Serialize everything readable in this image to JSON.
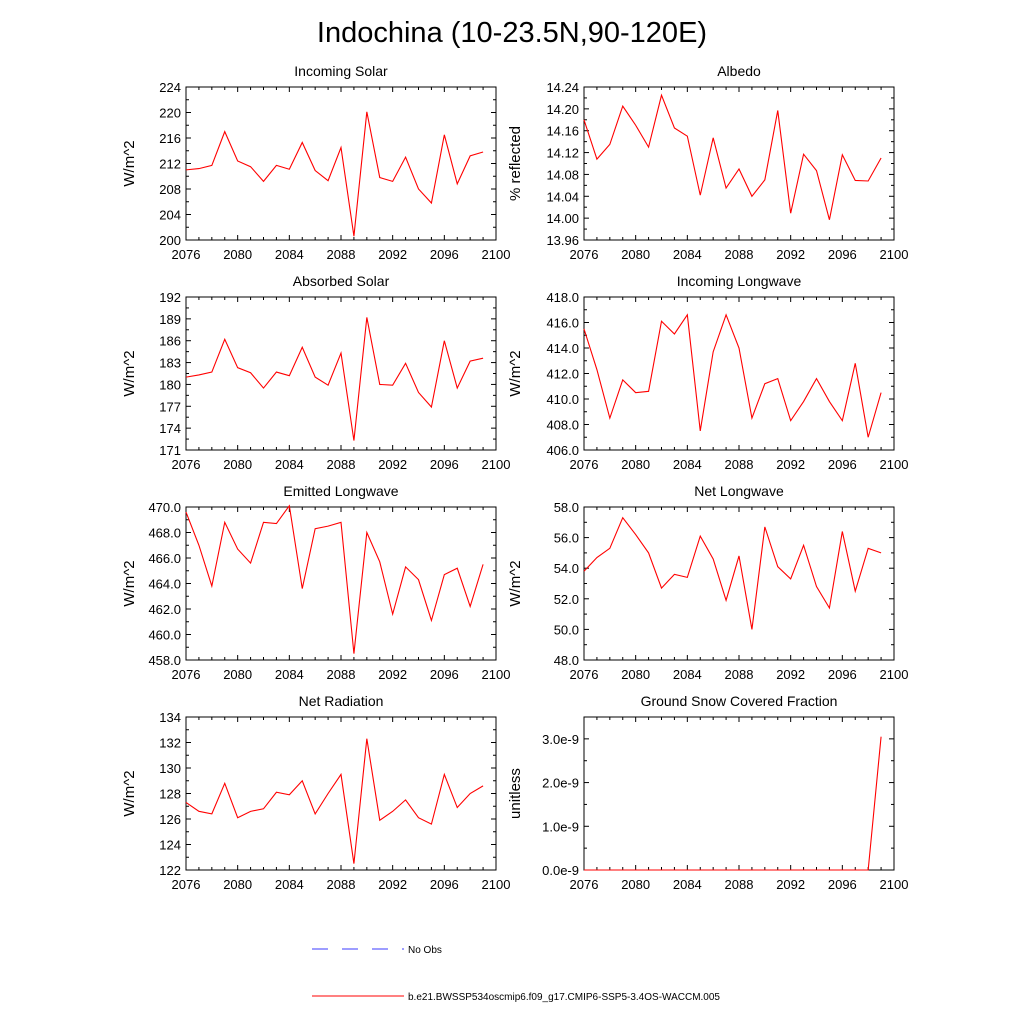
{
  "page_title": "Indochina (10-23.5N,90-120E)",
  "colors": {
    "series": "#ff0000",
    "obs": "#3b3bff",
    "axis": "#000000"
  },
  "legend": {
    "obs_label": "No Obs",
    "series_label": "b.e21.BWSSP534oscmip6.f09_g17.CMIP6-SSP5-3.4OS-WACCM.005"
  },
  "chart_data": [
    {
      "type": "line",
      "title": "Incoming Solar",
      "ylabel": "W/m^2",
      "xlim": [
        2076,
        2100
      ],
      "ylim": [
        200,
        224
      ],
      "xticks": [
        2076,
        2080,
        2084,
        2088,
        2092,
        2096,
        2100
      ],
      "xtick_labels": [
        "2076",
        "2080",
        "2084",
        "2088",
        "2092",
        "2096",
        "2100"
      ],
      "yticks": [
        200,
        204,
        208,
        212,
        216,
        220,
        224
      ],
      "ytick_labels": [
        "200",
        "204",
        "208",
        "212",
        "216",
        "220",
        "224"
      ],
      "x": [
        2076,
        2077,
        2078,
        2079,
        2080,
        2081,
        2082,
        2083,
        2084,
        2085,
        2086,
        2087,
        2088,
        2089,
        2090,
        2091,
        2092,
        2093,
        2094,
        2095,
        2096,
        2097,
        2098,
        2099
      ],
      "values": [
        211.0,
        211.2,
        211.7,
        217.0,
        212.4,
        211.5,
        209.2,
        211.7,
        211.1,
        215.3,
        210.9,
        209.3,
        214.5,
        200.6,
        220.1,
        209.8,
        209.2,
        213.0,
        208.0,
        205.8,
        216.5,
        208.8,
        213.2,
        213.8
      ]
    },
    {
      "type": "line",
      "title": "Albedo",
      "ylabel": "% reflected",
      "xlim": [
        2076,
        2100
      ],
      "ylim": [
        13.96,
        14.24
      ],
      "xticks": [
        2076,
        2080,
        2084,
        2088,
        2092,
        2096,
        2100
      ],
      "xtick_labels": [
        "2076",
        "2080",
        "2084",
        "2088",
        "2092",
        "2096",
        "2100"
      ],
      "yticks": [
        13.96,
        14.0,
        14.04,
        14.08,
        14.12,
        14.16,
        14.2,
        14.24
      ],
      "ytick_labels": [
        "13.96",
        "14.00",
        "14.04",
        "14.08",
        "14.12",
        "14.16",
        "14.20",
        "14.24"
      ],
      "x": [
        2076,
        2077,
        2078,
        2079,
        2080,
        2081,
        2082,
        2083,
        2084,
        2085,
        2086,
        2087,
        2088,
        2089,
        2090,
        2091,
        2092,
        2093,
        2094,
        2095,
        2096,
        2097,
        2098,
        2099
      ],
      "values": [
        14.18,
        14.108,
        14.135,
        14.205,
        14.17,
        14.13,
        14.225,
        14.165,
        14.15,
        14.042,
        14.147,
        14.055,
        14.09,
        14.04,
        14.07,
        14.197,
        14.009,
        14.117,
        14.087,
        13.997,
        14.116,
        14.069,
        14.068,
        14.11
      ]
    },
    {
      "type": "line",
      "title": "Absorbed Solar",
      "ylabel": "W/m^2",
      "xlim": [
        2076,
        2100
      ],
      "ylim": [
        171,
        192
      ],
      "xticks": [
        2076,
        2080,
        2084,
        2088,
        2092,
        2096,
        2100
      ],
      "xtick_labels": [
        "2076",
        "2080",
        "2084",
        "2088",
        "2092",
        "2096",
        "2100"
      ],
      "yticks": [
        171,
        174,
        177,
        180,
        183,
        186,
        189,
        192
      ],
      "ytick_labels": [
        "171",
        "174",
        "177",
        "180",
        "183",
        "186",
        "189",
        "192"
      ],
      "x": [
        2076,
        2077,
        2078,
        2079,
        2080,
        2081,
        2082,
        2083,
        2084,
        2085,
        2086,
        2087,
        2088,
        2089,
        2090,
        2091,
        2092,
        2093,
        2094,
        2095,
        2096,
        2097,
        2098,
        2099
      ],
      "values": [
        181.0,
        181.3,
        181.7,
        186.2,
        182.3,
        181.6,
        179.5,
        181.7,
        181.2,
        185.1,
        181.0,
        179.9,
        184.3,
        172.3,
        189.2,
        180.0,
        179.9,
        182.9,
        178.9,
        176.9,
        186.0,
        179.5,
        183.2,
        183.6
      ]
    },
    {
      "type": "line",
      "title": "Incoming Longwave",
      "ylabel": "W/m^2",
      "xlim": [
        2076,
        2100
      ],
      "ylim": [
        406,
        418
      ],
      "xticks": [
        2076,
        2080,
        2084,
        2088,
        2092,
        2096,
        2100
      ],
      "xtick_labels": [
        "2076",
        "2080",
        "2084",
        "2088",
        "2092",
        "2096",
        "2100"
      ],
      "yticks": [
        406,
        408,
        410,
        412,
        414,
        416,
        418
      ],
      "ytick_labels": [
        "406.0",
        "408.0",
        "410.0",
        "412.0",
        "414.0",
        "416.0",
        "418.0"
      ],
      "x": [
        2076,
        2077,
        2078,
        2079,
        2080,
        2081,
        2082,
        2083,
        2084,
        2085,
        2086,
        2087,
        2088,
        2089,
        2090,
        2091,
        2092,
        2093,
        2094,
        2095,
        2096,
        2097,
        2098,
        2099
      ],
      "values": [
        415.5,
        412.3,
        408.5,
        411.5,
        410.5,
        410.6,
        416.1,
        415.1,
        416.6,
        407.5,
        413.7,
        416.6,
        414.0,
        408.5,
        411.2,
        411.6,
        408.3,
        409.8,
        411.6,
        409.8,
        408.3,
        412.8,
        407.0,
        410.5
      ]
    },
    {
      "type": "line",
      "title": "Emitted Longwave",
      "ylabel": "W/m^2",
      "xlim": [
        2076,
        2100
      ],
      "ylim": [
        458,
        470
      ],
      "xticks": [
        2076,
        2080,
        2084,
        2088,
        2092,
        2096,
        2100
      ],
      "xtick_labels": [
        "2076",
        "2080",
        "2084",
        "2088",
        "2092",
        "2096",
        "2100"
      ],
      "yticks": [
        458,
        460,
        462,
        464,
        466,
        468,
        470
      ],
      "ytick_labels": [
        "458.0",
        "460.0",
        "462.0",
        "464.0",
        "466.0",
        "468.0",
        "470.0"
      ],
      "x": [
        2076,
        2077,
        2078,
        2079,
        2080,
        2081,
        2082,
        2083,
        2084,
        2085,
        2086,
        2087,
        2088,
        2089,
        2090,
        2091,
        2092,
        2093,
        2094,
        2095,
        2096,
        2097,
        2098,
        2099
      ],
      "values": [
        469.6,
        467.0,
        463.8,
        468.8,
        466.7,
        465.6,
        468.8,
        468.7,
        470.1,
        463.6,
        468.3,
        468.5,
        468.8,
        458.5,
        468.0,
        465.7,
        461.6,
        465.3,
        464.3,
        461.1,
        464.7,
        465.2,
        462.2,
        465.5
      ]
    },
    {
      "type": "line",
      "title": "Net Longwave",
      "ylabel": "W/m^2",
      "xlim": [
        2076,
        2100
      ],
      "ylim": [
        48,
        58
      ],
      "xticks": [
        2076,
        2080,
        2084,
        2088,
        2092,
        2096,
        2100
      ],
      "xtick_labels": [
        "2076",
        "2080",
        "2084",
        "2088",
        "2092",
        "2096",
        "2100"
      ],
      "yticks": [
        48,
        50,
        52,
        54,
        56,
        58
      ],
      "ytick_labels": [
        "48.0",
        "50.0",
        "52.0",
        "54.0",
        "56.0",
        "58.0"
      ],
      "x": [
        2076,
        2077,
        2078,
        2079,
        2080,
        2081,
        2082,
        2083,
        2084,
        2085,
        2086,
        2087,
        2088,
        2089,
        2090,
        2091,
        2092,
        2093,
        2094,
        2095,
        2096,
        2097,
        2098,
        2099
      ],
      "values": [
        53.8,
        54.7,
        55.3,
        57.3,
        56.2,
        55.0,
        52.7,
        53.6,
        53.4,
        56.1,
        54.6,
        51.9,
        54.8,
        50.0,
        56.7,
        54.1,
        53.3,
        55.5,
        52.8,
        51.4,
        56.4,
        52.5,
        55.3,
        55.0
      ]
    },
    {
      "type": "line",
      "title": "Net Radiation",
      "ylabel": "W/m^2",
      "xlim": [
        2076,
        2100
      ],
      "ylim": [
        122,
        134
      ],
      "xticks": [
        2076,
        2080,
        2084,
        2088,
        2092,
        2096,
        2100
      ],
      "xtick_labels": [
        "2076",
        "2080",
        "2084",
        "2088",
        "2092",
        "2096",
        "2100"
      ],
      "yticks": [
        122,
        124,
        126,
        128,
        130,
        132,
        134
      ],
      "ytick_labels": [
        "122",
        "124",
        "126",
        "128",
        "130",
        "132",
        "134"
      ],
      "x": [
        2076,
        2077,
        2078,
        2079,
        2080,
        2081,
        2082,
        2083,
        2084,
        2085,
        2086,
        2087,
        2088,
        2089,
        2090,
        2091,
        2092,
        2093,
        2094,
        2095,
        2096,
        2097,
        2098,
        2099
      ],
      "values": [
        127.3,
        126.6,
        126.4,
        128.8,
        126.1,
        126.6,
        126.8,
        128.1,
        127.9,
        129.0,
        126.4,
        128.0,
        129.5,
        122.5,
        132.3,
        125.9,
        126.6,
        127.5,
        126.1,
        125.6,
        129.5,
        126.9,
        128.0,
        128.6
      ]
    },
    {
      "type": "line",
      "title": "Ground Snow Covered Fraction",
      "ylabel": "unitless",
      "xlim": [
        2076,
        2100
      ],
      "ylim": [
        0,
        3.5e-09
      ],
      "xticks": [
        2076,
        2080,
        2084,
        2088,
        2092,
        2096,
        2100
      ],
      "xtick_labels": [
        "2076",
        "2080",
        "2084",
        "2088",
        "2092",
        "2096",
        "2100"
      ],
      "yticks": [
        0,
        1e-09,
        2e-09,
        3e-09
      ],
      "ytick_labels": [
        "0.0e-9",
        "1.0e-9",
        "2.0e-9",
        "3.0e-9"
      ],
      "x": [
        2076,
        2077,
        2078,
        2079,
        2080,
        2081,
        2082,
        2083,
        2084,
        2085,
        2086,
        2087,
        2088,
        2089,
        2090,
        2091,
        2092,
        2093,
        2094,
        2095,
        2096,
        2097,
        2098,
        2099
      ],
      "values": [
        0,
        0,
        0,
        0,
        0,
        0,
        0,
        0,
        0,
        0,
        0,
        0,
        0,
        0,
        0,
        0,
        0,
        0,
        0,
        0,
        0,
        0,
        0,
        3.05e-09
      ]
    }
  ]
}
